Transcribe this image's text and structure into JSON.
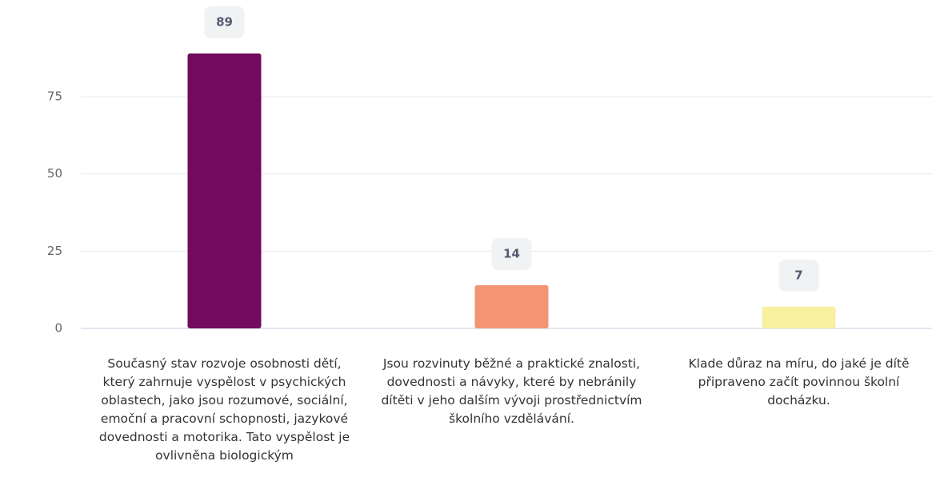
{
  "chart_data": {
    "type": "bar",
    "categories": [
      "Současný stav rozvoje osobnosti dětí, který zahrnuje vyspělost v psychických oblastech, jako jsou rozumové, sociální, emoční a pracovní schopnosti, jazykové dovednosti a motorika. Tato vyspělost je ovlivněna biologickým",
      "Jsou rozvinuty běžné a praktické znalosti, dovednosti a návyky, které by nebránily dítěti v jeho dalším vývoji prostřednictvím školního vzdělávání.",
      "Klade důraz na míru, do jaké je dítě připraveno začít povinnou školní docházku."
    ],
    "values": [
      89,
      14,
      7
    ],
    "colors": [
      "#740a5d",
      "#f39573",
      "#f8ef9f"
    ],
    "ylim": [
      0,
      100
    ],
    "yticks": [
      0,
      25,
      50,
      75
    ],
    "grid": true
  }
}
